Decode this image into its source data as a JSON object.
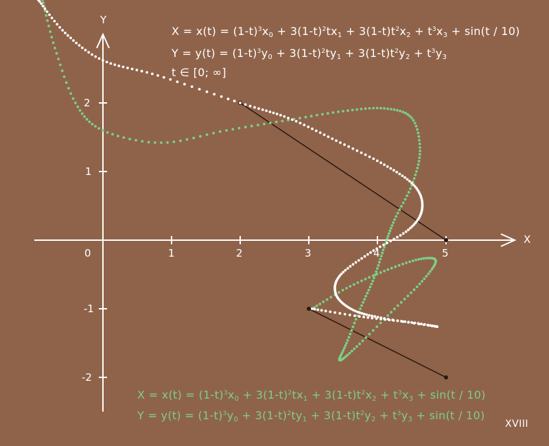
{
  "axes": {
    "x_label": "X",
    "y_label": "Y",
    "x_ticks": [
      "0",
      "1",
      "2",
      "3",
      "4",
      "5"
    ],
    "y_ticks": [
      "2",
      "1",
      "-1",
      "-2"
    ]
  },
  "white_formula": {
    "x_line": {
      "lhs": "X = x(t) = (1-t)",
      "s1": "3",
      "t1": "x",
      "i0": "0",
      "p2": " + 3(1-t)",
      "s2": "2",
      "t2": "tx",
      "i1": "1",
      "p3": " + 3(1-t)t",
      "s3": "2",
      "t3": "x",
      "i2": "2",
      "p4": " + t",
      "s4": "3",
      "t4": "x",
      "i3": "3",
      "tail": " + sin(t / 10)"
    },
    "y_line": {
      "lhs": "Y = y(t) = (1-t)",
      "s1": "3",
      "t1": "y",
      "i0": "0",
      "p2": " + 3(1-t)",
      "s2": "2",
      "t2": "ty",
      "i1": "1",
      "p3": " + 3(1-t)t",
      "s3": "2",
      "t3": "y",
      "i2": "2",
      "p4": " + t",
      "s4": "3",
      "t4": "y",
      "i3": "3",
      "tail": ""
    },
    "domain": "t ∈ [0; ∞]"
  },
  "green_formula": {
    "x_line": {
      "lhs": "X = x(t) = (1-t)",
      "s1": "3",
      "t1": "x",
      "i0": "0",
      "p2": " + 3(1-t)",
      "s2": "2",
      "t2": "tx",
      "i1": "1",
      "p3": " + 3(1-t)t",
      "s3": "2",
      "t3": "x",
      "i2": "2",
      "p4": " + t",
      "s4": "3",
      "t4": "x",
      "i3": "3",
      "tail": " + sin(t / 10)"
    },
    "y_line": {
      "lhs": "Y = y(t) = (1-t)",
      "s1": "3",
      "t1": "y",
      "i0": "0",
      "p2": " + 3(1-t)",
      "s2": "2",
      "t2": "ty",
      "i1": "1",
      "p3": " + 3(1-t)t",
      "s3": "2",
      "t3": "y",
      "i2": "2",
      "p4": " + t",
      "s4": "3",
      "t4": "y",
      "i3": "3",
      "tail": " + sin(t / 10)"
    }
  },
  "page_number": "XVIII",
  "colors": {
    "background": "#8f634a",
    "white_curve": "#ffffff",
    "green_curve": "#7ecf86",
    "segment": "#2a1a12",
    "axis": "#ffffff"
  },
  "segments": [
    {
      "name": "segment-upper",
      "from": [
        2,
        2
      ],
      "to": [
        5,
        0
      ]
    },
    {
      "name": "segment-lower",
      "from": [
        3,
        -1
      ],
      "to": [
        5,
        -2
      ]
    }
  ]
}
